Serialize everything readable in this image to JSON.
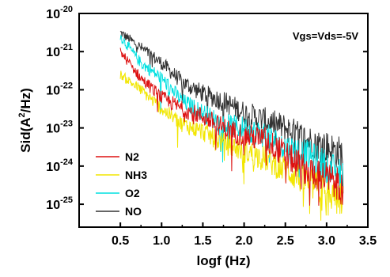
{
  "chart_data": {
    "type": "line",
    "xlabel": "logf (Hz)",
    "ylabel_main": "Sid(A",
    "ylabel_sup": "2",
    "ylabel_tail": "/Hz)",
    "annotation": "Vgs=Vds=-5V",
    "xlim": [
      0.0,
      3.5
    ],
    "x_ticks": [
      0.5,
      1.0,
      1.5,
      2.0,
      2.5,
      3.0,
      3.5
    ],
    "x_tick_labels": [
      "0.5",
      "1.0",
      "1.5",
      "2.0",
      "2.5",
      "3.0",
      "3.5"
    ],
    "y_scale": "log",
    "ylim_exponent": [
      -25.6,
      -20
    ],
    "y_ticks_exponent": [
      -25,
      -24,
      -23,
      -22,
      -21,
      -20
    ],
    "y_tick_base": "10",
    "y_tick_exps": [
      "-25",
      "-24",
      "-23",
      "-22",
      "-21",
      "-20"
    ],
    "grid": false,
    "legend_position": "bottom-left",
    "series": [
      {
        "name": "N2",
        "color": "#dd1111",
        "x": [
          0.5,
          0.75,
          1.0,
          1.25,
          1.5,
          1.75,
          2.0,
          2.25,
          2.5,
          2.75,
          3.0,
          3.2
        ],
        "log10_values": [
          -21.0,
          -21.7,
          -22.2,
          -22.5,
          -22.7,
          -23.0,
          -23.2,
          -23.3,
          -23.7,
          -24.1,
          -24.3,
          -24.6
        ]
      },
      {
        "name": "NH3",
        "color": "#f2e600",
        "x": [
          0.5,
          0.75,
          1.0,
          1.25,
          1.5,
          1.75,
          2.0,
          2.25,
          2.5,
          2.75,
          3.0,
          3.2
        ],
        "log10_values": [
          -21.6,
          -22.0,
          -22.5,
          -22.9,
          -23.1,
          -23.4,
          -23.6,
          -23.8,
          -24.1,
          -24.4,
          -24.7,
          -24.9
        ]
      },
      {
        "name": "O2",
        "color": "#00e0e0",
        "x": [
          0.5,
          0.75,
          1.0,
          1.25,
          1.5,
          1.75,
          2.0,
          2.25,
          2.5,
          2.75,
          3.0,
          3.2
        ],
        "log10_values": [
          -20.6,
          -21.3,
          -21.7,
          -22.3,
          -22.6,
          -22.9,
          -23.0,
          -23.2,
          -23.5,
          -23.7,
          -24.0,
          -24.3
        ]
      },
      {
        "name": "NO",
        "color": "#333333",
        "x": [
          0.5,
          0.75,
          1.0,
          1.25,
          1.5,
          1.75,
          2.0,
          2.25,
          2.5,
          2.75,
          3.0,
          3.2
        ],
        "log10_values": [
          -20.5,
          -20.9,
          -21.3,
          -21.8,
          -22.1,
          -22.3,
          -22.6,
          -22.8,
          -23.0,
          -23.3,
          -23.5,
          -23.7
        ]
      }
    ]
  }
}
